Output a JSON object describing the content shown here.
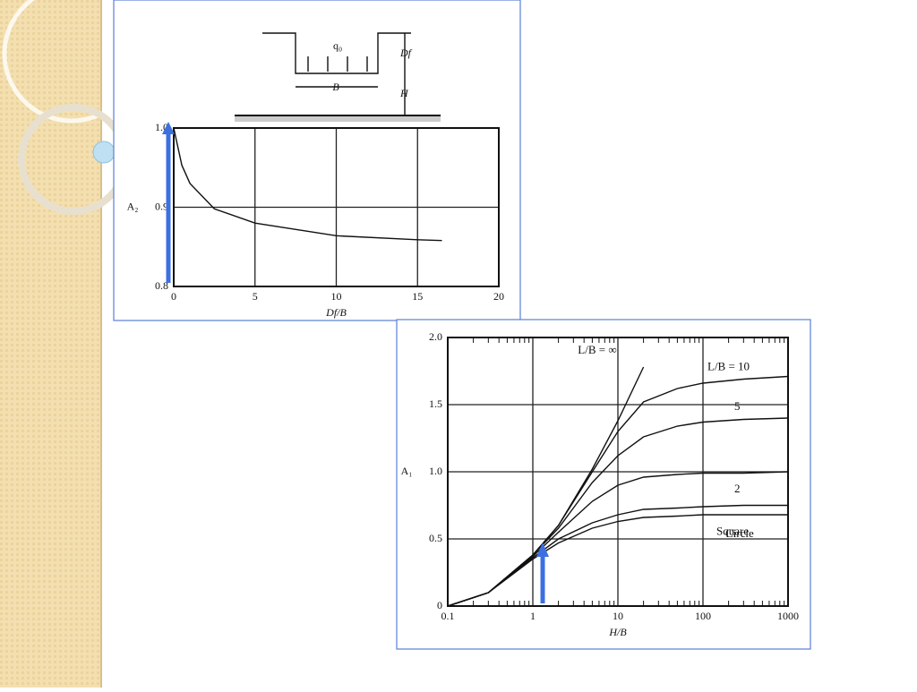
{
  "chart_data": [
    {
      "type": "line",
      "x_label": "Df/B",
      "y_label": "A₂",
      "annotations": [
        "q₀",
        "B",
        "Df",
        "H"
      ],
      "x": [
        0,
        0.5,
        1,
        2.5,
        5,
        10,
        15,
        16.5
      ],
      "series": [
        {
          "name": null,
          "color": "#111111",
          "values": [
            1.0,
            0.953,
            0.93,
            0.898,
            0.88,
            0.864,
            0.859,
            0.858
          ]
        }
      ],
      "xlim": [
        0,
        20
      ],
      "ylim": [
        0.8,
        1.0
      ],
      "xticks": [
        0,
        5,
        10,
        15,
        20
      ],
      "yticks": [
        0.8,
        0.9,
        {
          "value": 1,
          "label": "1.0"
        }
      ],
      "grid": true,
      "log_x": false
    },
    {
      "type": "line",
      "x_label": "H/B",
      "y_label": "A₁",
      "x": [
        0.1,
        0.3,
        1,
        2,
        5,
        10,
        20,
        50,
        100,
        300,
        1000
      ],
      "series": [
        {
          "name": "L/B = ∞",
          "color": "#111111",
          "values": [
            0,
            0.1,
            0.38,
            0.6,
            1.02,
            1.38,
            1.78,
            null,
            null,
            null,
            null
          ]
        },
        {
          "name": "L/B = 10",
          "color": "#111111",
          "values": [
            0,
            0.1,
            0.38,
            0.6,
            1.0,
            1.3,
            1.52,
            1.62,
            1.66,
            1.69,
            1.71
          ]
        },
        {
          "name": "5",
          "color": "#111111",
          "values": [
            0,
            0.1,
            0.38,
            0.58,
            0.92,
            1.12,
            1.26,
            1.34,
            1.37,
            1.39,
            1.4
          ]
        },
        {
          "name": "2",
          "color": "#111111",
          "values": [
            0,
            0.1,
            0.37,
            0.55,
            0.78,
            0.9,
            0.96,
            0.98,
            0.99,
            0.99,
            1.0
          ]
        },
        {
          "name": "Square",
          "color": "#111111",
          "values": [
            0,
            0.1,
            0.36,
            0.5,
            0.62,
            0.68,
            0.72,
            0.73,
            0.74,
            0.75,
            0.75
          ]
        },
        {
          "name": "Circle",
          "color": "#111111",
          "values": [
            0,
            0.1,
            0.35,
            0.47,
            0.58,
            0.63,
            0.66,
            0.67,
            0.68,
            0.68,
            0.68
          ]
        }
      ],
      "xlim": [
        0.1,
        1000
      ],
      "ylim": [
        0,
        2
      ],
      "xticks": [
        0.1,
        1,
        10,
        100,
        1000
      ],
      "yticks": [
        0,
        0.5,
        {
          "value": 1,
          "label": "1.0"
        },
        1.5,
        {
          "value": 2,
          "label": "2.0"
        }
      ],
      "grid": true,
      "log_x": true
    }
  ]
}
